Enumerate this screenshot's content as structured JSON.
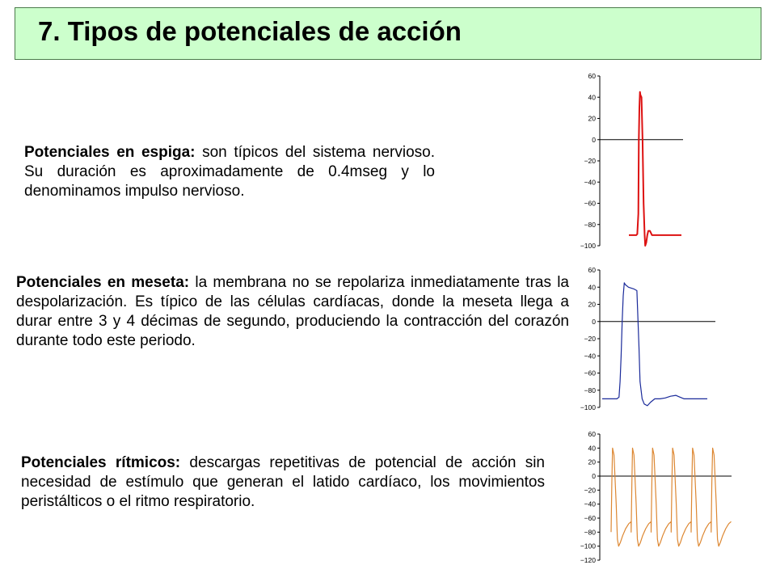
{
  "title": "7. Tipos de potenciales de acción",
  "sections": [
    {
      "heading": "Potenciales en espiga:",
      "text": " son típicos del sistema nervioso. Su duración es aproximadamente de 0.4mseg y lo denominamos impulso nervioso."
    },
    {
      "heading": "Potenciales en meseta:",
      "text": " la membrana no se repolariza inmediatamente tras la despolarización. Es típico de las células cardíacas, donde la meseta llega a durar entre 3 y 4 décimas de segundo, produciendo la contracción del corazón durante todo este periodo."
    },
    {
      "heading": "Potenciales rítmicos:",
      "text": " descargas repetitivas de potencial de acción sin necesidad de estímulo que generan el latido cardíaco, los movimientos peristálticos o el ritmo respiratorio."
    }
  ],
  "chart_data": [
    {
      "type": "line",
      "name": "spike",
      "color": "#dd1111",
      "ylim": [
        -100,
        60
      ],
      "yticks": [
        60,
        40,
        20,
        0,
        -20,
        -40,
        -60,
        -80,
        -100
      ],
      "ytick_labels": [
        "60",
        "40",
        "20",
        "0",
        "-20",
        "-40",
        "-60",
        "-80",
        "-100"
      ],
      "xlim": [
        0,
        100
      ],
      "x": [
        0,
        8,
        14,
        16,
        18,
        19,
        20,
        21,
        22,
        24,
        26,
        28,
        30,
        31,
        33,
        35,
        37,
        40,
        44,
        50,
        60,
        70,
        80,
        90,
        100
      ],
      "y": [
        -90,
        -90,
        -90,
        -89,
        -70,
        0,
        30,
        45,
        42,
        40,
        0,
        -60,
        -90,
        -100,
        -97,
        -90,
        -86,
        -86,
        -90,
        -90,
        -90,
        -90,
        -90,
        -90,
        -90
      ]
    },
    {
      "type": "line",
      "name": "plateau",
      "color": "#1a2a9a",
      "ylim": [
        -100,
        60
      ],
      "yticks": [
        60,
        40,
        20,
        0,
        -20,
        -40,
        -60,
        -80,
        -100
      ],
      "ytick_labels": [
        "60",
        "40",
        "20",
        "0",
        "-20",
        "-40",
        "-60",
        "-80",
        "-100"
      ],
      "xlim": [
        0,
        100
      ],
      "x": [
        0,
        5,
        10,
        14,
        16,
        17,
        18,
        19,
        20,
        21,
        22,
        25,
        30,
        33,
        35,
        36,
        38,
        40,
        43,
        46,
        50,
        55,
        60,
        65,
        70,
        74,
        78,
        82,
        86,
        90,
        95,
        100
      ],
      "y": [
        -90,
        -90,
        -90,
        -90,
        -88,
        -70,
        -40,
        0,
        30,
        45,
        43,
        40,
        38,
        36,
        -30,
        -70,
        -90,
        -96,
        -98,
        -94,
        -90,
        -90,
        -89,
        -87,
        -86,
        -88,
        -90,
        -90,
        -90,
        -90,
        -90,
        -90
      ]
    },
    {
      "type": "line",
      "name": "rhythmic",
      "color": "#dd8833",
      "ylim": [
        -120,
        60
      ],
      "yticks": [
        60,
        40,
        20,
        0,
        -20,
        -40,
        -60,
        -80,
        -100,
        -120
      ],
      "ytick_labels": [
        "60",
        "40",
        "20",
        "0",
        "-20",
        "-40",
        "-60",
        "-80",
        "-100",
        "-120"
      ],
      "xlim": [
        0,
        100
      ],
      "cycles": 6,
      "cycle_start": 0,
      "cycle_period": 16.5,
      "cycle_x": [
        0,
        0.6,
        1.2,
        2.4,
        4.2,
        5.2,
        6.2,
        7.6,
        9.5,
        12,
        14.5,
        16.5
      ],
      "cycle_y": [
        -80,
        -10,
        40,
        30,
        -40,
        -90,
        -100,
        -95,
        -85,
        -75,
        -68,
        -65
      ]
    }
  ]
}
